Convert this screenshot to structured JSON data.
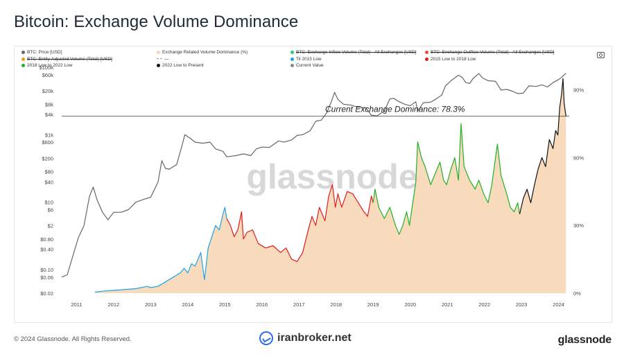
{
  "title": "Bitcoin: Exchange Volume Dominance",
  "footer": {
    "copyright": "© 2024 Glassnode. All Rights Reserved.",
    "brand": "iranbroker.net",
    "logo": "glassnode"
  },
  "toolbar": {
    "camera_icon": "camera-icon"
  },
  "chart_data": {
    "type": "line",
    "watermark": "glassnode",
    "annotation": "Current Exchange Dominance: 78.3%",
    "reference_line_pct": 78.3,
    "legend_placement": "top",
    "legend": [
      {
        "label": "BTC: Price [USD]",
        "color": "#666666",
        "marker": "dot",
        "struck": false
      },
      {
        "label": "Exchange Related Volume Dominance (%)",
        "color": "#f7d5b0",
        "marker": "dot",
        "struck": false
      },
      {
        "label": "BTC: Exchange Inflow Volume (Total) - All Exchanges [USD]",
        "color": "#2ecc71",
        "marker": "dot",
        "struck": true
      },
      {
        "label": "BTC: Exchange Outflow Volume (Total) - All Exchanges [USD]",
        "color": "#e74c3c",
        "marker": "dot",
        "struck": true
      },
      {
        "label": "BTC: Entity-Adjusted Volume (Total) [USD]",
        "color": "#f39c12",
        "marker": "dot",
        "struck": true
      },
      {
        "label": "—",
        "color": "#999999",
        "marker": "dash",
        "struck": false
      },
      {
        "label": "Til 2015 Low",
        "color": "#1aa3e8",
        "marker": "dot",
        "struck": false
      },
      {
        "label": "2015 Low to 2018 Low",
        "color": "#e01b1b",
        "marker": "dot",
        "struck": false
      },
      {
        "label": "2018 Low to 2022 Low",
        "color": "#22b022",
        "marker": "dot",
        "struck": false
      },
      {
        "label": "2022 Low to Present",
        "color": "#111111",
        "marker": "dot",
        "struck": false
      },
      {
        "label": "Current Value",
        "color": "#888888",
        "marker": "dot",
        "struck": false
      }
    ],
    "x_ticks": [
      "2011",
      "2012",
      "2013",
      "2014",
      "2015",
      "2016",
      "2017",
      "2018",
      "2019",
      "2020",
      "2021",
      "2022",
      "2023",
      "2024"
    ],
    "x_range": [
      2010.6,
      2024.25
    ],
    "y_left": {
      "scale": "log",
      "range": [
        0.02,
        100000
      ],
      "ticks": [
        {
          "v": 100000,
          "label": "$100k"
        },
        {
          "v": 60000,
          "label": "$60k"
        },
        {
          "v": 20000,
          "label": "$20k"
        },
        {
          "v": 8000,
          "label": "$8k"
        },
        {
          "v": 4000,
          "label": "$4k"
        },
        {
          "v": 1000,
          "label": "$1k"
        },
        {
          "v": 600,
          "label": "$600"
        },
        {
          "v": 200,
          "label": "$200"
        },
        {
          "v": 80,
          "label": "$80"
        },
        {
          "v": 40,
          "label": "$40"
        },
        {
          "v": 10,
          "label": "$10"
        },
        {
          "v": 6,
          "label": "$6"
        },
        {
          "v": 2,
          "label": "$2"
        },
        {
          "v": 0.8,
          "label": "$0.80"
        },
        {
          "v": 0.4,
          "label": "$0.40"
        },
        {
          "v": 0.1,
          "label": "$0.10"
        },
        {
          "v": 0.06,
          "label": "$0.06"
        },
        {
          "v": 0.02,
          "label": "$0.02"
        }
      ]
    },
    "y_right": {
      "scale": "linear",
      "range": [
        0,
        100
      ],
      "ticks": [
        {
          "v": 0,
          "label": "0%"
        },
        {
          "v": 30,
          "label": "30%"
        },
        {
          "v": 60,
          "label": "60%"
        },
        {
          "v": 90,
          "label": "90%"
        }
      ]
    },
    "series": [
      {
        "name": "BTC: Price [USD]",
        "color": "#666666",
        "points": [
          [
            2010.6,
            0.06
          ],
          [
            2010.75,
            0.07
          ],
          [
            2010.9,
            0.25
          ],
          [
            2011.05,
            0.9
          ],
          [
            2011.2,
            2
          ],
          [
            2011.35,
            15
          ],
          [
            2011.45,
            28
          ],
          [
            2011.55,
            12
          ],
          [
            2011.7,
            5
          ],
          [
            2011.85,
            3
          ],
          [
            2012.0,
            5
          ],
          [
            2012.2,
            5
          ],
          [
            2012.4,
            6
          ],
          [
            2012.6,
            10
          ],
          [
            2012.8,
            12
          ],
          [
            2013.0,
            14
          ],
          [
            2013.2,
            40
          ],
          [
            2013.3,
            170
          ],
          [
            2013.4,
            100
          ],
          [
            2013.5,
            95
          ],
          [
            2013.7,
            130
          ],
          [
            2013.85,
            500
          ],
          [
            2013.92,
            1000
          ],
          [
            2014.05,
            800
          ],
          [
            2014.2,
            600
          ],
          [
            2014.4,
            560
          ],
          [
            2014.6,
            600
          ],
          [
            2014.75,
            380
          ],
          [
            2014.95,
            320
          ],
          [
            2015.05,
            220
          ],
          [
            2015.3,
            240
          ],
          [
            2015.5,
            270
          ],
          [
            2015.7,
            240
          ],
          [
            2015.85,
            380
          ],
          [
            2016.0,
            430
          ],
          [
            2016.2,
            420
          ],
          [
            2016.45,
            650
          ],
          [
            2016.6,
            600
          ],
          [
            2016.8,
            700
          ],
          [
            2016.95,
            950
          ],
          [
            2017.1,
            1000
          ],
          [
            2017.3,
            1300
          ],
          [
            2017.45,
            2500
          ],
          [
            2017.6,
            2700
          ],
          [
            2017.75,
            4500
          ],
          [
            2017.88,
            10000
          ],
          [
            2017.96,
            18000
          ],
          [
            2018.05,
            11000
          ],
          [
            2018.2,
            8000
          ],
          [
            2018.4,
            7500
          ],
          [
            2018.6,
            6500
          ],
          [
            2018.8,
            6300
          ],
          [
            2018.95,
            3800
          ],
          [
            2019.1,
            3600
          ],
          [
            2019.3,
            5000
          ],
          [
            2019.45,
            11500
          ],
          [
            2019.55,
            12000
          ],
          [
            2019.7,
            9500
          ],
          [
            2019.85,
            8000
          ],
          [
            2020.0,
            7200
          ],
          [
            2020.15,
            9500
          ],
          [
            2020.2,
            5000
          ],
          [
            2020.35,
            8800
          ],
          [
            2020.55,
            9200
          ],
          [
            2020.7,
            11500
          ],
          [
            2020.85,
            15000
          ],
          [
            2020.95,
            28000
          ],
          [
            2021.1,
            40000
          ],
          [
            2021.3,
            58000
          ],
          [
            2021.4,
            50000
          ],
          [
            2021.5,
            35000
          ],
          [
            2021.6,
            33000
          ],
          [
            2021.7,
            47000
          ],
          [
            2021.85,
            65000
          ],
          [
            2021.95,
            48000
          ],
          [
            2022.1,
            40000
          ],
          [
            2022.3,
            38000
          ],
          [
            2022.45,
            21000
          ],
          [
            2022.6,
            22000
          ],
          [
            2022.75,
            19500
          ],
          [
            2022.9,
            16500
          ],
          [
            2023.05,
            17000
          ],
          [
            2023.2,
            28000
          ],
          [
            2023.4,
            27000
          ],
          [
            2023.55,
            30000
          ],
          [
            2023.7,
            26000
          ],
          [
            2023.85,
            35000
          ],
          [
            2024.0,
            43000
          ],
          [
            2024.1,
            52000
          ],
          [
            2024.2,
            67000
          ]
        ]
      },
      {
        "name": "Exchange Related Volume Dominance (%)",
        "color": "#f7d5b0",
        "segments": [
          {
            "name": "Til 2015 Low",
            "color": "#1aa3e8",
            "points": [
              [
                2011.5,
                0.5
              ],
              [
                2011.8,
                1
              ],
              [
                2012.2,
                1.5
              ],
              [
                2012.6,
                2
              ],
              [
                2012.9,
                3
              ],
              [
                2013.0,
                2.5
              ],
              [
                2013.2,
                3
              ],
              [
                2013.4,
                5
              ],
              [
                2013.6,
                7
              ],
              [
                2013.8,
                9
              ],
              [
                2013.9,
                11
              ],
              [
                2014.0,
                9
              ],
              [
                2014.1,
                13
              ],
              [
                2014.2,
                12
              ],
              [
                2014.35,
                18
              ],
              [
                2014.45,
                6
              ],
              [
                2014.55,
                20
              ],
              [
                2014.65,
                25
              ],
              [
                2014.75,
                30
              ],
              [
                2014.85,
                28
              ],
              [
                2014.95,
                35
              ],
              [
                2015.0,
                38
              ],
              [
                2015.05,
                33
              ]
            ]
          },
          {
            "name": "2015 Low to 2018 Low",
            "color": "#e01b1b",
            "points": [
              [
                2015.05,
                33
              ],
              [
                2015.15,
                30
              ],
              [
                2015.25,
                25
              ],
              [
                2015.35,
                28
              ],
              [
                2015.45,
                36
              ],
              [
                2015.5,
                24
              ],
              [
                2015.6,
                27
              ],
              [
                2015.75,
                28
              ],
              [
                2015.9,
                22
              ],
              [
                2016.1,
                20
              ],
              [
                2016.3,
                21
              ],
              [
                2016.5,
                18
              ],
              [
                2016.65,
                20
              ],
              [
                2016.8,
                15
              ],
              [
                2016.95,
                14
              ],
              [
                2017.1,
                18
              ],
              [
                2017.25,
                28
              ],
              [
                2017.35,
                34
              ],
              [
                2017.45,
                30
              ],
              [
                2017.55,
                38
              ],
              [
                2017.7,
                32
              ],
              [
                2017.8,
                43
              ],
              [
                2017.9,
                48
              ],
              [
                2017.98,
                38
              ],
              [
                2018.05,
                44
              ],
              [
                2018.15,
                38
              ],
              [
                2018.3,
                45
              ],
              [
                2018.45,
                44
              ],
              [
                2018.6,
                40
              ],
              [
                2018.75,
                36
              ],
              [
                2018.85,
                34
              ],
              [
                2018.95,
                43
              ],
              [
                2019.0,
                40
              ]
            ]
          },
          {
            "name": "2018 Low to 2022 Low",
            "color": "#22b022",
            "points": [
              [
                2019.0,
                40
              ],
              [
                2019.05,
                46
              ],
              [
                2019.15,
                38
              ],
              [
                2019.3,
                33
              ],
              [
                2019.45,
                38
              ],
              [
                2019.6,
                30
              ],
              [
                2019.7,
                26
              ],
              [
                2019.8,
                30
              ],
              [
                2019.9,
                36
              ],
              [
                2019.98,
                30
              ],
              [
                2020.05,
                38
              ],
              [
                2020.15,
                49
              ],
              [
                2020.2,
                67
              ],
              [
                2020.3,
                60
              ],
              [
                2020.4,
                56
              ],
              [
                2020.55,
                48
              ],
              [
                2020.7,
                54
              ],
              [
                2020.8,
                58
              ],
              [
                2020.9,
                50
              ],
              [
                2020.98,
                48
              ],
              [
                2021.1,
                55
              ],
              [
                2021.2,
                60
              ],
              [
                2021.3,
                50
              ],
              [
                2021.37,
                75
              ],
              [
                2021.45,
                56
              ],
              [
                2021.6,
                50
              ],
              [
                2021.75,
                46
              ],
              [
                2021.85,
                50
              ],
              [
                2021.98,
                44
              ],
              [
                2022.1,
                40
              ],
              [
                2022.2,
                48
              ],
              [
                2022.35,
                66
              ],
              [
                2022.45,
                52
              ],
              [
                2022.6,
                44
              ],
              [
                2022.7,
                38
              ],
              [
                2022.8,
                36
              ],
              [
                2022.9,
                40
              ],
              [
                2022.95,
                35
              ]
            ]
          },
          {
            "name": "2022 Low to Present",
            "color": "#111111",
            "points": [
              [
                2022.95,
                35
              ],
              [
                2023.05,
                42
              ],
              [
                2023.15,
                46
              ],
              [
                2023.25,
                40
              ],
              [
                2023.35,
                48
              ],
              [
                2023.45,
                55
              ],
              [
                2023.55,
                60
              ],
              [
                2023.65,
                56
              ],
              [
                2023.75,
                68
              ],
              [
                2023.85,
                64
              ],
              [
                2023.92,
                72
              ],
              [
                2023.98,
                70
              ],
              [
                2024.03,
                82
              ],
              [
                2024.08,
                88
              ],
              [
                2024.12,
                95
              ],
              [
                2024.15,
                84
              ],
              [
                2024.2,
                78.3
              ]
            ]
          }
        ]
      }
    ]
  }
}
